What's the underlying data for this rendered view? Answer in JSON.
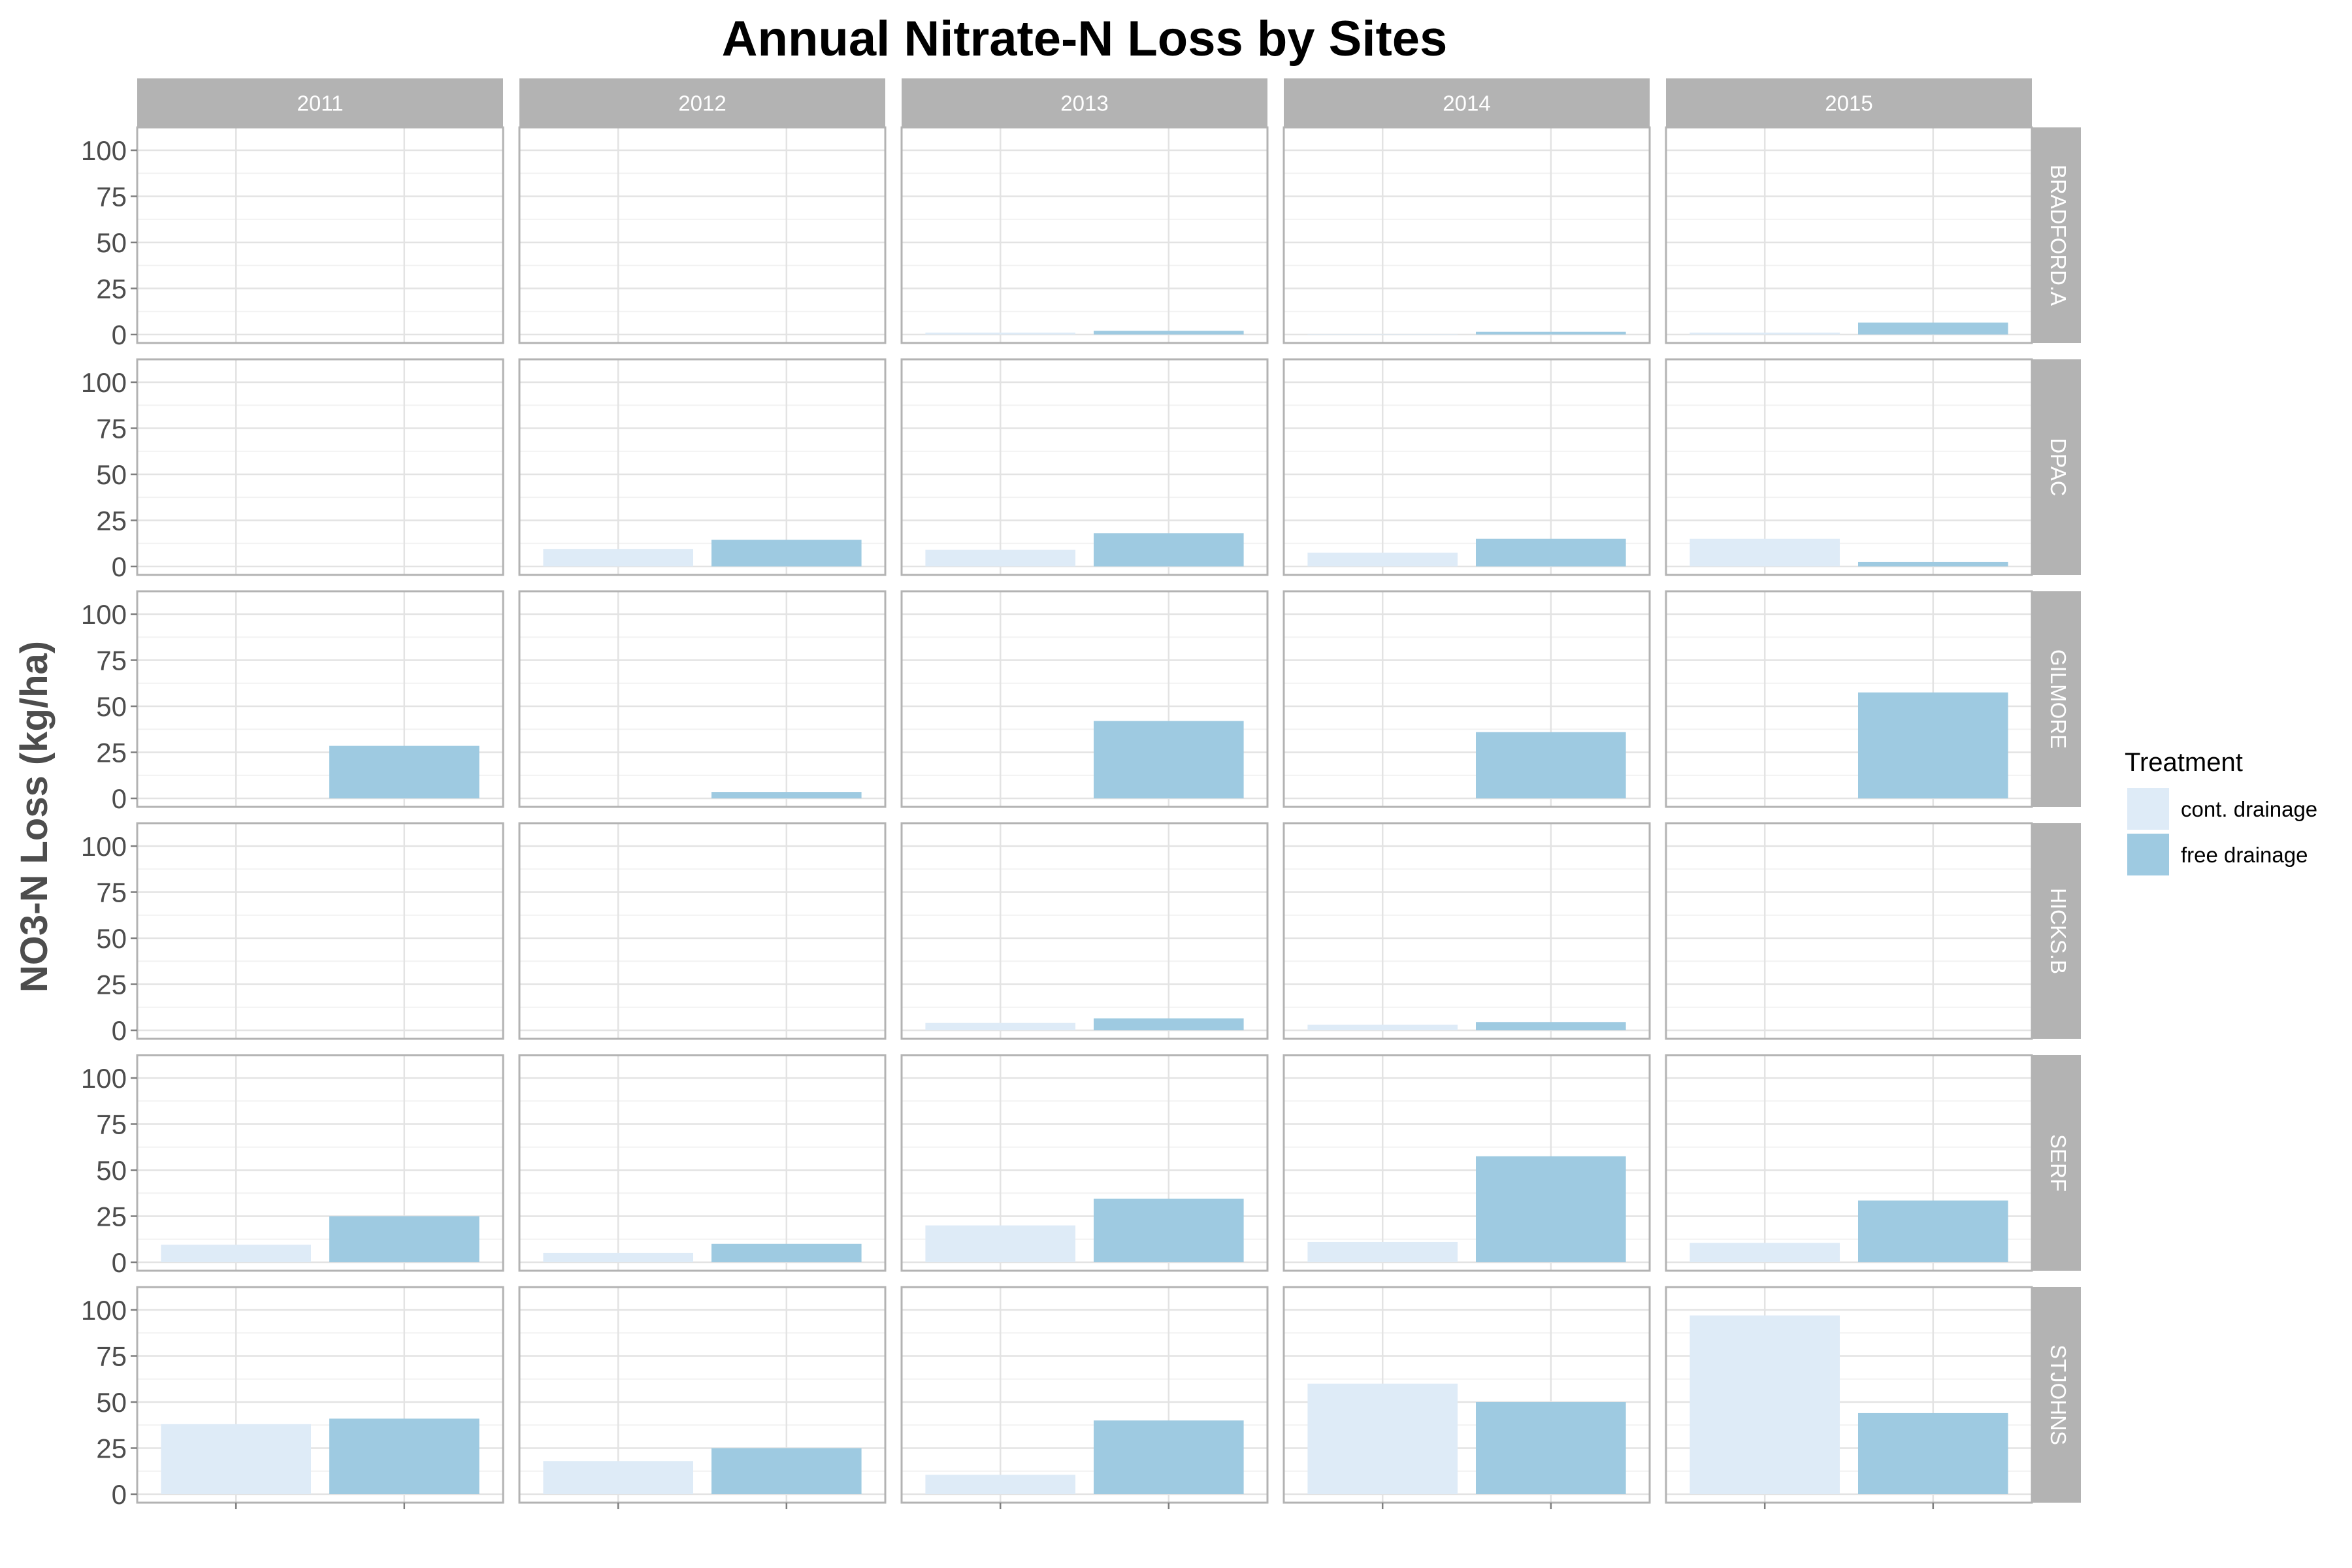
{
  "chart_data": {
    "type": "bar",
    "title": "Annual Nitrate-N Loss by Sites",
    "xlabel": "",
    "ylabel": "NO3-N Loss (kg/ha)",
    "ylim": [
      0,
      100
    ],
    "yticks": [
      0,
      25,
      50,
      75,
      100
    ],
    "grid": true,
    "facet_columns": [
      "2011",
      "2012",
      "2013",
      "2014",
      "2015"
    ],
    "facet_rows": [
      "BRADFORD.A",
      "DPAC",
      "GILMORE",
      "HICKS.B",
      "SERF",
      "STJOHNS"
    ],
    "legend": {
      "title": "Treatment",
      "placement": "right",
      "entries": [
        {
          "label": "cont. drainage",
          "color": "#deebf7"
        },
        {
          "label": "free drainage",
          "color": "#9ecae1"
        }
      ]
    },
    "series": [
      {
        "name": "cont. drainage",
        "color": "#deebf7",
        "values": [
          [
            null,
            null,
            1,
            0.3,
            1
          ],
          [
            null,
            9.5,
            9,
            7.5,
            15
          ],
          [
            null,
            null,
            null,
            null,
            null
          ],
          [
            null,
            null,
            4,
            3,
            null
          ],
          [
            9.5,
            5,
            20,
            11,
            10.5
          ],
          [
            38,
            18,
            10.5,
            60,
            97
          ]
        ]
      },
      {
        "name": "free drainage",
        "color": "#9ecae1",
        "values": [
          [
            null,
            null,
            2,
            1.5,
            6.5
          ],
          [
            null,
            14.5,
            18,
            15,
            2.5
          ],
          [
            28.5,
            3.5,
            42,
            36,
            57.5
          ],
          [
            null,
            null,
            6.5,
            4.5,
            null
          ],
          [
            25,
            10,
            34.5,
            57.5,
            33.5
          ],
          [
            41,
            25,
            40,
            50,
            44
          ]
        ]
      }
    ]
  }
}
